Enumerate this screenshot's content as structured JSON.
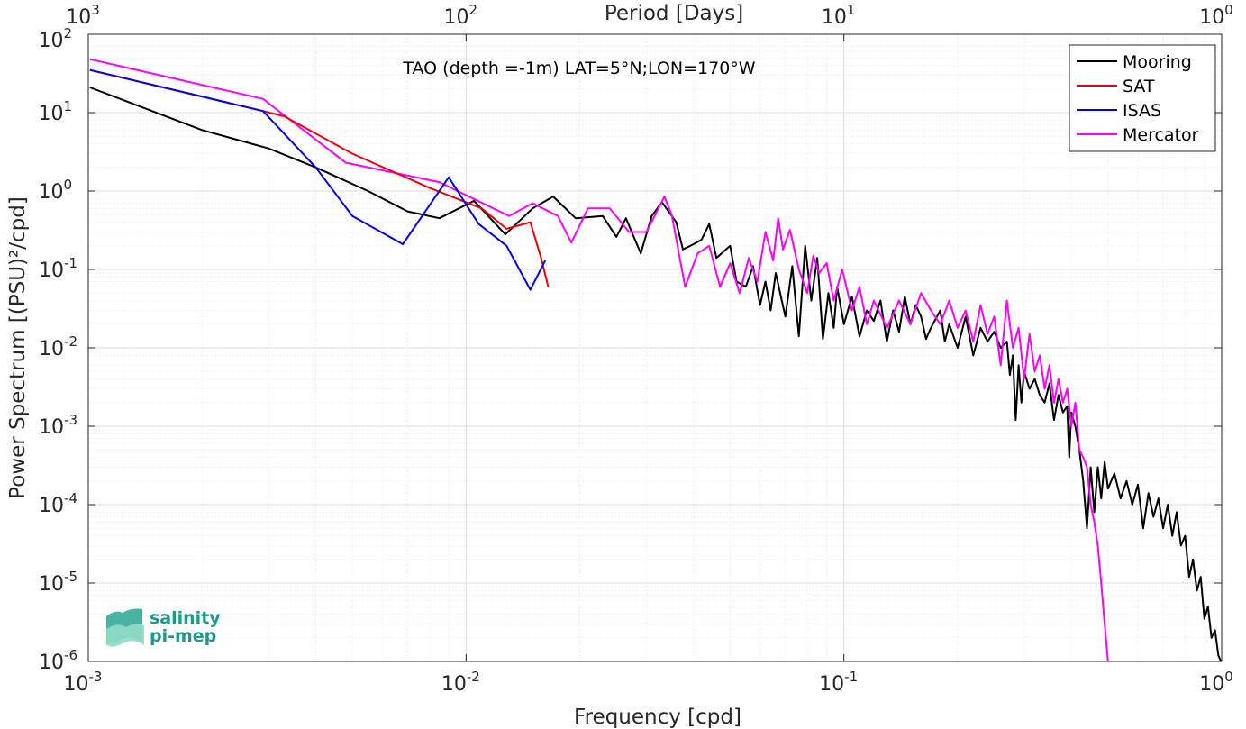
{
  "chart_data": {
    "type": "line",
    "title": "TAO (depth =-1m) LAT=5°N;LON=170°W",
    "xlabel": "Frequency [cpd]",
    "ylabel": "Power Spectrum [(PSU)²/cpd]",
    "top_xlabel": "Period [Days]",
    "xscale": "log",
    "yscale": "log",
    "xlim": [
      0.001,
      1
    ],
    "ylim": [
      1e-06,
      100
    ],
    "grid": true,
    "legend_position": "top-right",
    "x_tick_labels": [
      {
        "base": "10",
        "exp": "-3"
      },
      {
        "base": "10",
        "exp": "-2"
      },
      {
        "base": "10",
        "exp": "-1"
      },
      {
        "base": "10",
        "exp": "0"
      }
    ],
    "top_tick_labels": [
      {
        "base": "10",
        "exp": "3"
      },
      {
        "base": "10",
        "exp": "2"
      },
      {
        "base": "10",
        "exp": "1"
      },
      {
        "base": "10",
        "exp": "0"
      }
    ],
    "y_tick_labels": [
      {
        "base": "10",
        "exp": "-6"
      },
      {
        "base": "10",
        "exp": "-5"
      },
      {
        "base": "10",
        "exp": "-4"
      },
      {
        "base": "10",
        "exp": "-3"
      },
      {
        "base": "10",
        "exp": "-2"
      },
      {
        "base": "10",
        "exp": "-1"
      },
      {
        "base": "10",
        "exp": "0"
      },
      {
        "base": "10",
        "exp": "1"
      },
      {
        "base": "10",
        "exp": "2"
      }
    ],
    "series": [
      {
        "name": "Mooring",
        "color": "#000000",
        "points": [
          [
            0.00101,
            21
          ],
          [
            0.002,
            6
          ],
          [
            0.003,
            3.5
          ],
          [
            0.004,
            2
          ],
          [
            0.0055,
            1.0
          ],
          [
            0.007,
            0.55
          ],
          [
            0.0085,
            0.45
          ],
          [
            0.0105,
            0.75
          ],
          [
            0.0127,
            0.28
          ],
          [
            0.015,
            0.6
          ],
          [
            0.017,
            0.85
          ],
          [
            0.0195,
            0.45
          ],
          [
            0.023,
            0.48
          ],
          [
            0.025,
            0.26
          ],
          [
            0.0265,
            0.45
          ],
          [
            0.029,
            0.16
          ],
          [
            0.031,
            0.48
          ],
          [
            0.033,
            0.72
          ],
          [
            0.036,
            0.4
          ],
          [
            0.0375,
            0.18
          ],
          [
            0.04,
            0.21
          ],
          [
            0.042,
            0.24
          ],
          [
            0.044,
            0.38
          ],
          [
            0.046,
            0.14
          ],
          [
            0.05,
            0.2
          ],
          [
            0.052,
            0.07
          ],
          [
            0.055,
            0.06
          ],
          [
            0.0575,
            0.11
          ],
          [
            0.06,
            0.035
          ],
          [
            0.062,
            0.07
          ],
          [
            0.064,
            0.03
          ],
          [
            0.066,
            0.09
          ],
          [
            0.07,
            0.025
          ],
          [
            0.073,
            0.11
          ],
          [
            0.076,
            0.014
          ],
          [
            0.079,
            0.2
          ],
          [
            0.082,
            0.04
          ],
          [
            0.085,
            0.14
          ],
          [
            0.088,
            0.013
          ],
          [
            0.091,
            0.05
          ],
          [
            0.094,
            0.018
          ],
          [
            0.096,
            0.06
          ],
          [
            0.1,
            0.02
          ],
          [
            0.105,
            0.045
          ],
          [
            0.11,
            0.014
          ],
          [
            0.115,
            0.03
          ],
          [
            0.12,
            0.022
          ],
          [
            0.125,
            0.04
          ],
          [
            0.13,
            0.012
          ],
          [
            0.135,
            0.03
          ],
          [
            0.14,
            0.016
          ],
          [
            0.145,
            0.045
          ],
          [
            0.15,
            0.02
          ],
          [
            0.155,
            0.035
          ],
          [
            0.16,
            0.025
          ],
          [
            0.165,
            0.013
          ],
          [
            0.17,
            0.018
          ],
          [
            0.18,
            0.03
          ],
          [
            0.185,
            0.012
          ],
          [
            0.19,
            0.02
          ],
          [
            0.2,
            0.01
          ],
          [
            0.21,
            0.025
          ],
          [
            0.22,
            0.008
          ],
          [
            0.23,
            0.018
          ],
          [
            0.24,
            0.012
          ],
          [
            0.25,
            0.016
          ],
          [
            0.26,
            0.01
          ],
          [
            0.27,
            0.012
          ],
          [
            0.275,
            0.0045
          ],
          [
            0.28,
            0.008
          ],
          [
            0.285,
            0.0012
          ],
          [
            0.29,
            0.006
          ],
          [
            0.295,
            0.002
          ],
          [
            0.3,
            0.005
          ],
          [
            0.31,
            0.003
          ],
          [
            0.32,
            0.004
          ],
          [
            0.33,
            0.0025
          ],
          [
            0.34,
            0.002
          ],
          [
            0.35,
            0.0035
          ],
          [
            0.36,
            0.0012
          ],
          [
            0.37,
            0.0025
          ],
          [
            0.38,
            0.0015
          ],
          [
            0.39,
            0.0018
          ],
          [
            0.395,
            0.0004
          ],
          [
            0.4,
            0.0015
          ],
          [
            0.41,
            0.001
          ],
          [
            0.42,
            0.0005
          ],
          [
            0.43,
            0.0002
          ],
          [
            0.44,
            5e-05
          ],
          [
            0.45,
            0.0003
          ],
          [
            0.46,
            8e-05
          ],
          [
            0.47,
            0.0003
          ],
          [
            0.48,
            0.00012
          ],
          [
            0.49,
            0.00035
          ],
          [
            0.5,
            0.00016
          ],
          [
            0.52,
            0.00025
          ],
          [
            0.54,
            0.00012
          ],
          [
            0.56,
            0.0002
          ],
          [
            0.58,
            0.0001
          ],
          [
            0.6,
            0.00018
          ],
          [
            0.62,
            5e-05
          ],
          [
            0.64,
            0.00014
          ],
          [
            0.66,
            7e-05
          ],
          [
            0.68,
            0.00012
          ],
          [
            0.7,
            5e-05
          ],
          [
            0.72,
            0.0001
          ],
          [
            0.74,
            4e-05
          ],
          [
            0.76,
            8e-05
          ],
          [
            0.78,
            3e-05
          ],
          [
            0.8,
            4e-05
          ],
          [
            0.82,
            1.2e-05
          ],
          [
            0.84,
            2e-05
          ],
          [
            0.86,
            8e-06
          ],
          [
            0.88,
            1.2e-05
          ],
          [
            0.9,
            3.5e-06
          ],
          [
            0.92,
            5e-06
          ],
          [
            0.94,
            2e-06
          ],
          [
            0.96,
            2.5e-06
          ],
          [
            0.98,
            1.2e-06
          ],
          [
            0.995,
            1e-06
          ]
        ]
      },
      {
        "name": "SAT",
        "color": "#e8000b",
        "points": [
          [
            0.00101,
            35
          ],
          [
            0.0029,
            10.5
          ],
          [
            0.0033,
            9
          ],
          [
            0.005,
            3
          ],
          [
            0.008,
            1.1
          ],
          [
            0.011,
            0.6
          ],
          [
            0.0128,
            0.33
          ],
          [
            0.0148,
            0.4
          ],
          [
            0.0158,
            0.14
          ],
          [
            0.0165,
            0.06
          ]
        ]
      },
      {
        "name": "ISAS",
        "color": "#0000e6",
        "points": [
          [
            0.00101,
            35
          ],
          [
            0.0029,
            10.5
          ],
          [
            0.004,
            2
          ],
          [
            0.005,
            0.48
          ],
          [
            0.0068,
            0.21
          ],
          [
            0.009,
            1.5
          ],
          [
            0.0108,
            0.38
          ],
          [
            0.0128,
            0.2
          ],
          [
            0.0148,
            0.055
          ],
          [
            0.0162,
            0.13
          ]
        ]
      },
      {
        "name": "Mercator",
        "color": "#ff00ff",
        "points": [
          [
            0.00101,
            48
          ],
          [
            0.0029,
            15
          ],
          [
            0.0048,
            2.3
          ],
          [
            0.0085,
            1.3
          ],
          [
            0.013,
            0.48
          ],
          [
            0.015,
            0.7
          ],
          [
            0.0175,
            0.48
          ],
          [
            0.019,
            0.22
          ],
          [
            0.021,
            0.6
          ],
          [
            0.024,
            0.6
          ],
          [
            0.027,
            0.3
          ],
          [
            0.03,
            0.3
          ],
          [
            0.032,
            0.55
          ],
          [
            0.0335,
            0.85
          ],
          [
            0.035,
            0.5
          ],
          [
            0.038,
            0.06
          ],
          [
            0.041,
            0.16
          ],
          [
            0.044,
            0.2
          ],
          [
            0.047,
            0.06
          ],
          [
            0.05,
            0.12
          ],
          [
            0.053,
            0.05
          ],
          [
            0.056,
            0.14
          ],
          [
            0.059,
            0.07
          ],
          [
            0.062,
            0.3
          ],
          [
            0.065,
            0.13
          ],
          [
            0.067,
            0.45
          ],
          [
            0.069,
            0.18
          ],
          [
            0.072,
            0.32
          ],
          [
            0.076,
            0.1
          ],
          [
            0.08,
            0.05
          ],
          [
            0.083,
            0.15
          ],
          [
            0.086,
            0.09
          ],
          [
            0.09,
            0.12
          ],
          [
            0.094,
            0.04
          ],
          [
            0.099,
            0.1
          ],
          [
            0.105,
            0.03
          ],
          [
            0.11,
            0.06
          ],
          [
            0.115,
            0.02
          ],
          [
            0.12,
            0.04
          ],
          [
            0.13,
            0.018
          ],
          [
            0.14,
            0.04
          ],
          [
            0.15,
            0.02
          ],
          [
            0.16,
            0.05
          ],
          [
            0.17,
            0.03
          ],
          [
            0.18,
            0.02
          ],
          [
            0.19,
            0.04
          ],
          [
            0.2,
            0.018
          ],
          [
            0.21,
            0.03
          ],
          [
            0.22,
            0.012
          ],
          [
            0.23,
            0.035
          ],
          [
            0.24,
            0.015
          ],
          [
            0.25,
            0.025
          ],
          [
            0.26,
            0.006
          ],
          [
            0.27,
            0.04
          ],
          [
            0.28,
            0.01
          ],
          [
            0.29,
            0.018
          ],
          [
            0.3,
            0.004
          ],
          [
            0.31,
            0.015
          ],
          [
            0.32,
            0.005
          ],
          [
            0.33,
            0.008
          ],
          [
            0.34,
            0.003
          ],
          [
            0.35,
            0.006
          ],
          [
            0.36,
            0.002
          ],
          [
            0.37,
            0.004
          ],
          [
            0.38,
            0.002
          ],
          [
            0.39,
            0.003
          ],
          [
            0.4,
            0.001
          ],
          [
            0.41,
            0.002
          ],
          [
            0.42,
            0.0005
          ],
          [
            0.43,
            0.0004
          ],
          [
            0.44,
            0.0003
          ],
          [
            0.45,
            0.0001
          ],
          [
            0.46,
            6e-05
          ],
          [
            0.47,
            3e-05
          ],
          [
            0.48,
            1e-05
          ],
          [
            0.49,
            3e-06
          ],
          [
            0.5,
            1e-06
          ]
        ]
      }
    ]
  },
  "logo": {
    "line1": "salinity",
    "line2": "pi-mep"
  }
}
